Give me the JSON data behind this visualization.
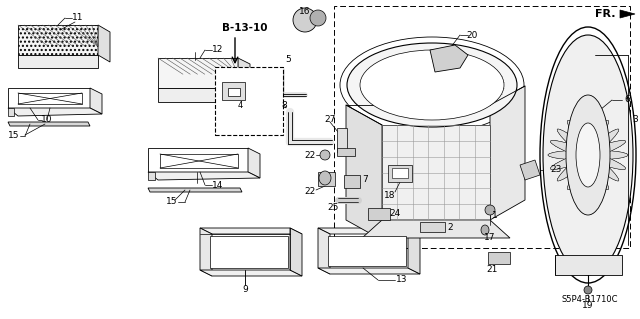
{
  "background_color": "#ffffff",
  "fig_width": 6.4,
  "fig_height": 3.19,
  "dpi": 100,
  "ref_label": "B-13-10",
  "fr_label": "FR.",
  "code_label": "S5P4-B1710C"
}
